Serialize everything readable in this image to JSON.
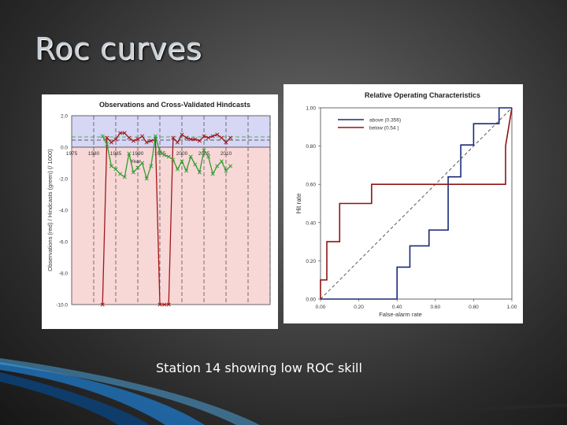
{
  "slide": {
    "title": "Roc curves",
    "caption": "Station 14 showing low ROC skill"
  },
  "chart_data": [
    {
      "type": "line",
      "title": "Observations and Cross-Validated Hindcasts",
      "xlabel": "Year",
      "ylabel": "Observations (red) / Hindcasts (green) (/ 1000)",
      "xlim": [
        1975,
        2020
      ],
      "ylim": [
        -10,
        2
      ],
      "x_ticks": [
        1975,
        1980,
        1985,
        1990,
        1995,
        2000,
        2005,
        2010
      ],
      "y_ticks": [
        2.0,
        0.0,
        -2.0,
        -4.0,
        -6.0,
        -8.0,
        -10.0
      ],
      "y_tick_labels": [
        "2.0",
        "0.0",
        "-2.0",
        "-4.0",
        "-6.0",
        "-8.0",
        "-10.0"
      ],
      "grid": "vertical dashed",
      "upper_band_color": "#d6d6f5",
      "lower_band_color": "#f8d7d7",
      "threshold_lines": [
        0.65,
        0.45
      ],
      "series": [
        {
          "color": "#a01818",
          "x": [
            1982,
            1983,
            1984,
            1985,
            1986,
            1987,
            1988,
            1989,
            1990,
            1991,
            1992,
            1993,
            1994,
            1995,
            1996,
            1997,
            1998,
            1999,
            2000,
            2001,
            2002,
            2003,
            2004,
            2005,
            2006,
            2007,
            2008,
            2009,
            2010,
            2011
          ],
          "values": [
            -10.0,
            0.6,
            0.3,
            0.5,
            0.9,
            0.9,
            0.6,
            0.4,
            0.5,
            0.7,
            0.3,
            0.4,
            0.5,
            -10.0,
            -10.0,
            -10.0,
            0.6,
            0.3,
            0.8,
            0.6,
            0.5,
            0.5,
            0.4,
            0.7,
            0.6,
            0.7,
            0.8,
            0.6,
            0.3,
            0.6
          ]
        },
        {
          "color": "#2e9e2e",
          "x": [
            1982,
            1983,
            1984,
            1985,
            1986,
            1987,
            1988,
            1989,
            1990,
            1991,
            1992,
            1993,
            1994,
            1995,
            1996,
            1997,
            1998,
            1999,
            2000,
            2001,
            2002,
            2003,
            2004,
            2005,
            2006,
            2007,
            2008,
            2009,
            2010,
            2011
          ],
          "values": [
            0.7,
            0.2,
            -1.2,
            -1.4,
            -1.7,
            -1.9,
            -0.4,
            -1.6,
            -1.3,
            -1.0,
            -2.0,
            -1.2,
            0.7,
            -0.3,
            -0.5,
            -0.6,
            -0.8,
            -1.4,
            -0.9,
            -1.5,
            -0.6,
            -1.1,
            -1.6,
            -0.2,
            -0.6,
            -1.7,
            -1.2,
            -0.9,
            -1.5,
            -1.2
          ]
        }
      ]
    },
    {
      "type": "line",
      "title": "Relative Operating Characteristics",
      "xlabel": "False-alarm rate",
      "ylabel": "Hit rate",
      "xlim": [
        0,
        1
      ],
      "ylim": [
        0,
        1
      ],
      "x_ticks": [
        0.0,
        0.2,
        0.4,
        0.6,
        0.8,
        1.0
      ],
      "y_ticks": [
        0.0,
        0.2,
        0.4,
        0.6,
        0.8,
        1.0
      ],
      "tick_labels": [
        "0.00",
        "0.20",
        "0.40",
        "0.60",
        "0.80",
        "1.00"
      ],
      "legend": "top-left",
      "diagonal": "dashed",
      "series": [
        {
          "name": "above (0.356)",
          "color": "#1a2a7a",
          "x": [
            0.0,
            0.4,
            0.4,
            0.467,
            0.467,
            0.567,
            0.567,
            0.667,
            0.667,
            0.733,
            0.733,
            0.8,
            0.8,
            0.933,
            0.933,
            1.0,
            1.0
          ],
          "values": [
            0.0,
            0.0,
            0.167,
            0.167,
            0.278,
            0.278,
            0.361,
            0.361,
            0.639,
            0.639,
            0.806,
            0.806,
            0.917,
            0.917,
            1.0,
            1.0,
            1.0
          ]
        },
        {
          "name": "below (0.54 )",
          "color": "#8c1414",
          "x": [
            0.0,
            0.0,
            0.033,
            0.033,
            0.1,
            0.1,
            0.267,
            0.267,
            0.967,
            0.967,
            1.0
          ],
          "values": [
            0.0,
            0.1,
            0.1,
            0.3,
            0.3,
            0.5,
            0.5,
            0.6,
            0.6,
            0.8,
            1.0
          ]
        }
      ]
    }
  ]
}
